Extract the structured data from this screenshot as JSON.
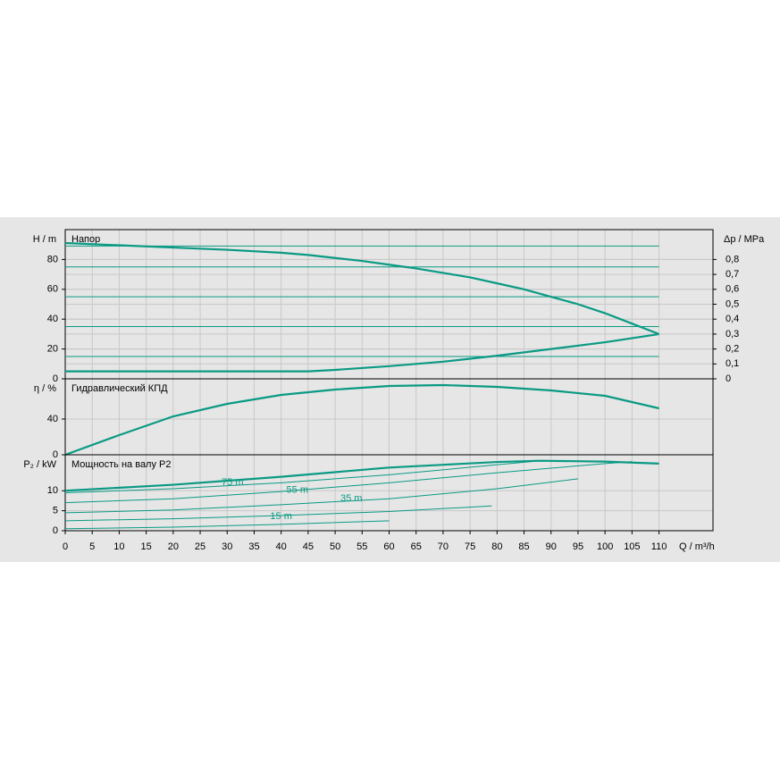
{
  "chart_data": [
    {
      "type": "line",
      "title": "Напор",
      "ylabel": "H / m",
      "y2label": "Δp / MPa",
      "xlim": [
        0,
        120
      ],
      "ylim": [
        0,
        100
      ],
      "yticks": [
        0,
        20,
        40,
        60,
        80
      ],
      "y2lim": [
        0,
        1
      ],
      "y2ticks": [
        0,
        {
          "value": 0.1,
          "label": "0,1"
        },
        {
          "value": 0.2,
          "label": "0,2"
        },
        {
          "value": 0.3,
          "label": "0,3"
        },
        {
          "value": 0.4,
          "label": "0,4"
        },
        {
          "value": 0.5,
          "label": "0,5"
        },
        {
          "value": 0.6,
          "label": "0,6"
        },
        {
          "value": 0.7,
          "label": "0,7"
        },
        {
          "value": 0.8,
          "label": "0,8"
        }
      ],
      "grid": true,
      "series": [
        {
          "color": "#0a9a84",
          "line_width": 2.2,
          "x": [
            0,
            10,
            20,
            30,
            40,
            45,
            50,
            55,
            60,
            65,
            70,
            75,
            80,
            85,
            90,
            95,
            100,
            105,
            110
          ],
          "values": [
            91,
            89.5,
            88,
            86.5,
            84.5,
            83,
            81,
            79,
            76.5,
            74,
            71,
            68,
            64,
            60,
            55,
            50,
            44,
            37,
            30
          ]
        },
        {
          "color": "#0a9a84",
          "line_width": 2.2,
          "x": [
            0,
            45,
            50,
            60,
            70,
            80,
            90,
            100,
            110
          ],
          "values": [
            5,
            5,
            6,
            8.5,
            11.5,
            15.5,
            20,
            24.5,
            30
          ]
        },
        {
          "color": "#0a9a84",
          "line_width": 1,
          "x": [
            0,
            110
          ],
          "values": [
            89,
            89
          ]
        },
        {
          "color": "#0a9a84",
          "line_width": 1,
          "x": [
            0,
            110
          ],
          "values": [
            75,
            75
          ]
        },
        {
          "color": "#0a9a84",
          "line_width": 1,
          "x": [
            0,
            110
          ],
          "values": [
            55,
            55
          ]
        },
        {
          "color": "#0a9a84",
          "line_width": 1,
          "x": [
            0,
            110
          ],
          "values": [
            35,
            35
          ]
        },
        {
          "color": "#0a9a84",
          "line_width": 1,
          "x": [
            0,
            110
          ],
          "values": [
            15,
            15
          ]
        }
      ]
    },
    {
      "type": "line",
      "title": "Гидравлический КПД",
      "ylabel": "η / %",
      "xlim": [
        0,
        120
      ],
      "ylim": [
        0,
        85
      ],
      "yticks": [
        0,
        40
      ],
      "grid": true,
      "series": [
        {
          "color": "#0a9a84",
          "line_width": 2.2,
          "x": [
            0,
            10,
            20,
            30,
            40,
            50,
            60,
            70,
            80,
            90,
            100,
            110
          ],
          "values": [
            0,
            22,
            43,
            57,
            67,
            73,
            77,
            78,
            76,
            72,
            66,
            52
          ]
        }
      ]
    },
    {
      "type": "line",
      "title": "Мощность на валу P2",
      "ylabel": "P₂ / kW",
      "xlabel": "Q / m³/h",
      "xlim": [
        0,
        120
      ],
      "ylim": [
        0,
        19
      ],
      "yticks": [
        0,
        5,
        10
      ],
      "grid": true,
      "xticks": [
        0,
        5,
        10,
        15,
        20,
        25,
        30,
        35,
        40,
        45,
        50,
        55,
        60,
        65,
        70,
        75,
        80,
        85,
        90,
        95,
        100,
        105,
        110
      ],
      "annotations": [
        {
          "text": "75 m",
          "x": 31,
          "y": 12
        },
        {
          "text": "55 m",
          "x": 43,
          "y": 10.2
        },
        {
          "text": "35 m",
          "x": 53,
          "y": 8
        },
        {
          "text": "15 m",
          "x": 40,
          "y": 3.5
        }
      ],
      "series": [
        {
          "color": "#0a9a84",
          "line_width": 2.2,
          "x": [
            0,
            20,
            40,
            60,
            70,
            80,
            88,
            100,
            110
          ],
          "values": [
            10,
            11.5,
            13.5,
            15.8,
            16.5,
            17.2,
            17.5,
            17.3,
            16.8
          ]
        },
        {
          "color": "#0a9a84",
          "line_width": 1,
          "x": [
            0,
            20,
            40,
            60,
            80,
            88
          ],
          "values": [
            9.5,
            10.5,
            12,
            14,
            16.5,
            17.5
          ]
        },
        {
          "color": "#0a9a84",
          "line_width": 1,
          "x": [
            0,
            20,
            40,
            60,
            80,
            100,
            105
          ],
          "values": [
            7,
            8,
            9.8,
            12,
            14.5,
            16.8,
            17.3
          ]
        },
        {
          "color": "#0a9a84",
          "line_width": 1,
          "x": [
            0,
            20,
            40,
            60,
            80,
            95
          ],
          "values": [
            4.5,
            5.2,
            6.5,
            8,
            10.5,
            13
          ]
        },
        {
          "color": "#0a9a84",
          "line_width": 1,
          "x": [
            0,
            20,
            40,
            60,
            79
          ],
          "values": [
            2.5,
            3,
            3.8,
            4.8,
            6.2
          ]
        },
        {
          "color": "#0a9a84",
          "line_width": 1,
          "x": [
            0,
            20,
            40,
            60
          ],
          "values": [
            0.5,
            0.9,
            1.6,
            2.5
          ]
        }
      ]
    }
  ]
}
